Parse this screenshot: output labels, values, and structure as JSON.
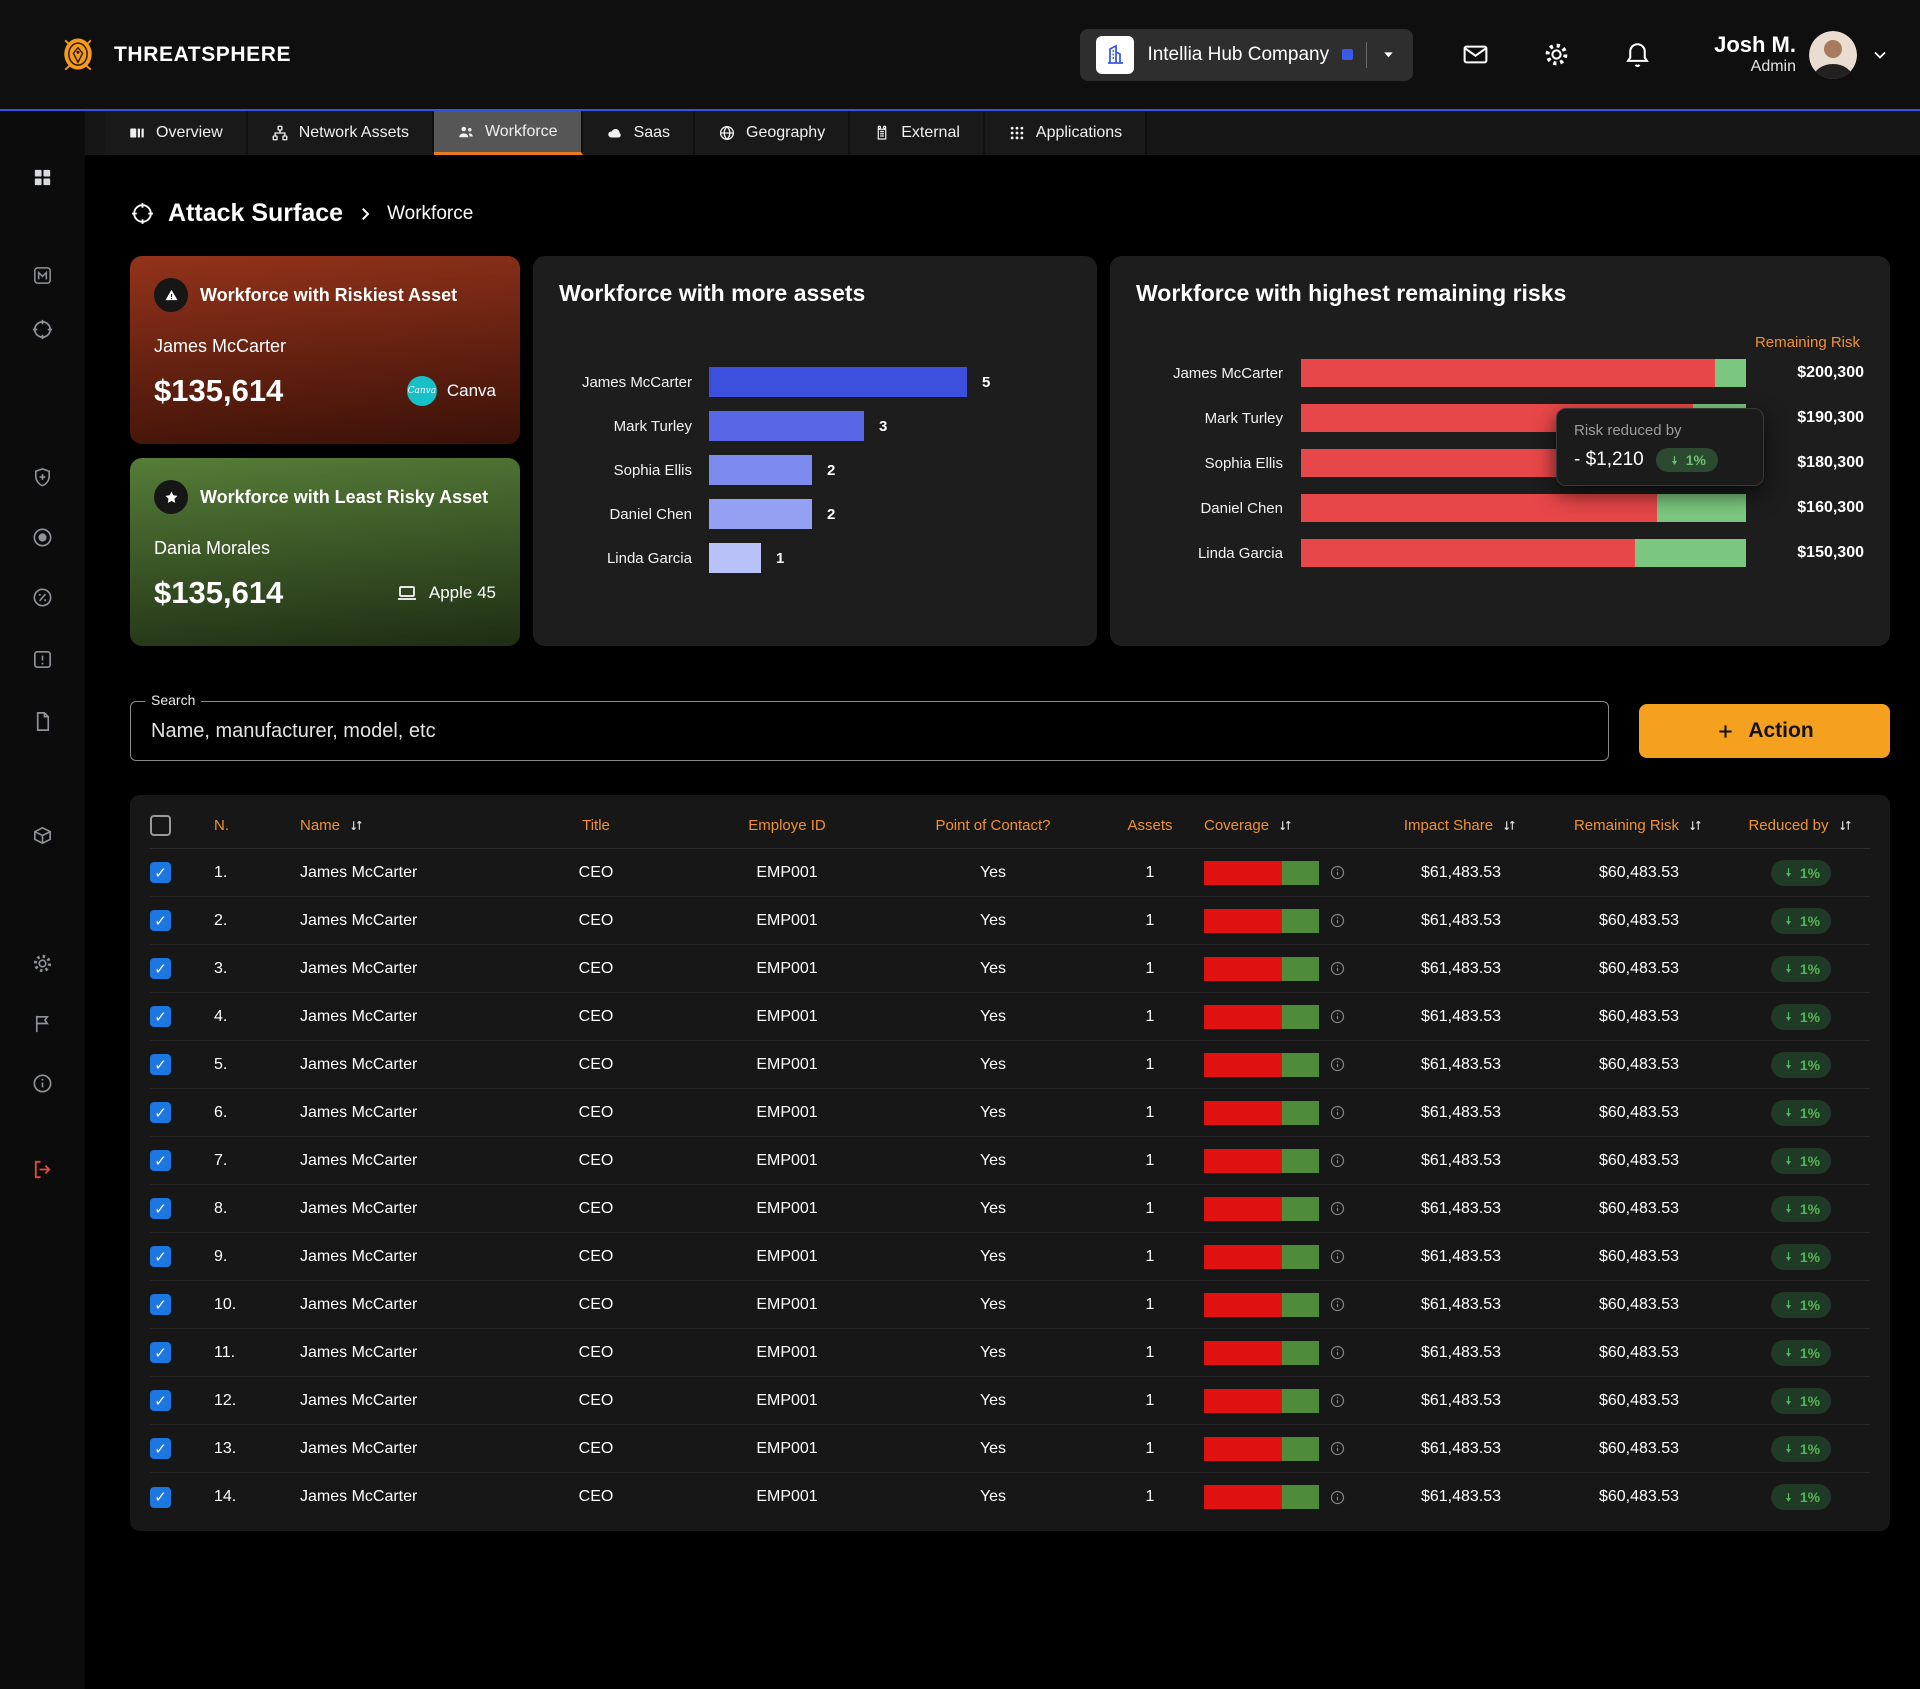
{
  "brand": "THREATSPHERE",
  "topbar": {
    "company": "Intellia Hub Company",
    "icons": [
      "mail",
      "settings",
      "bell"
    ],
    "user_name": "Josh M.",
    "user_role": "Admin"
  },
  "tabs": [
    {
      "label": "Overview",
      "icon": "overview",
      "active": false
    },
    {
      "label": "Network Assets",
      "icon": "network",
      "active": false
    },
    {
      "label": "Workforce",
      "icon": "workforce",
      "active": true
    },
    {
      "label": "Saas",
      "icon": "cloud",
      "active": false
    },
    {
      "label": "Geography",
      "icon": "globe",
      "active": false
    },
    {
      "label": "External",
      "icon": "external",
      "active": false
    },
    {
      "label": "Applications",
      "icon": "apps",
      "active": false
    }
  ],
  "sidebar": {
    "icons": [
      "dashboard",
      "m-logo",
      "target",
      "shield-add",
      "record",
      "percent-circle",
      "alert-square",
      "document",
      "package",
      "settings",
      "flag",
      "info",
      "logout"
    ]
  },
  "breadcrumb": {
    "section": "Attack Surface",
    "current": "Workforce"
  },
  "cards": {
    "riskiest": {
      "title": "Workforce with Riskiest Asset",
      "person": "James McCarter",
      "amount": "$135,614",
      "asset": "Canva",
      "badge_icon": "warning",
      "asset_icon": "canva-logo"
    },
    "least": {
      "title": "Workforce with Least Risky Asset",
      "person": "Dania Morales",
      "amount": "$135,614",
      "asset": "Apple 45",
      "badge_icon": "star",
      "asset_icon": "laptop"
    }
  },
  "chart_data": [
    {
      "type": "bar",
      "orientation": "horizontal",
      "title": "Workforce with more assets",
      "categories": [
        "James McCarter",
        "Mark Turley",
        "Sophia Ellis",
        "Daniel Chen",
        "Linda Garcia"
      ],
      "values": [
        5,
        3,
        2,
        2,
        1
      ],
      "xlim": [
        0,
        5
      ],
      "bar_colors": [
        "#3c50dd",
        "#5767e6",
        "#7d8bee",
        "#94a0f2",
        "#b9c2f8"
      ],
      "grid": false,
      "value_labels": true
    },
    {
      "type": "stacked-bar",
      "orientation": "horizontal",
      "title": "Workforce with highest remaining risks",
      "column_header": "Remaining Risk",
      "categories": [
        "James McCarter",
        "Mark Turley",
        "Sophia Ellis",
        "Daniel Chen",
        "Linda Garcia"
      ],
      "series": [
        {
          "name": "remaining",
          "color": "#e84749",
          "fractions_pct": [
            93,
            88,
            86,
            80,
            75
          ]
        },
        {
          "name": "reduced",
          "color": "#7cc77f",
          "fractions_pct": [
            7,
            12,
            14,
            20,
            25
          ]
        }
      ],
      "values": [
        "$200,300",
        "$190,300",
        "$180,300",
        "$160,300",
        "$150,300"
      ],
      "tooltip": {
        "label": "Risk reduced by",
        "value": "- $1,210",
        "percent": "1%"
      }
    }
  ],
  "search": {
    "label": "Search",
    "placeholder": "Name, manufacturer, model, etc"
  },
  "action": {
    "label": "Action"
  },
  "colors": {
    "accent_orange": "#f5a01f",
    "tab_underline": "#e87b1e",
    "header_orange": "#ef9235",
    "blue_line": "#2f55e6",
    "risk_red": "#e84749",
    "risk_green": "#7cc77f",
    "coverage_red": "#e01111",
    "coverage_green": "#4e8b3b",
    "checkbox_blue": "#1c78e0",
    "logout_red": "#e5483f",
    "canva_teal": "#17bfc7"
  },
  "table": {
    "headers": [
      {
        "label": "N.",
        "sortable": false
      },
      {
        "label": "Name",
        "sortable": true
      },
      {
        "label": "Title",
        "sortable": false
      },
      {
        "label": "Employe ID",
        "sortable": false
      },
      {
        "label": "Point of Contact?",
        "sortable": false
      },
      {
        "label": "Assets",
        "sortable": false
      },
      {
        "label": "Coverage",
        "sortable": true
      },
      {
        "label": "Impact Share",
        "sortable": true
      },
      {
        "label": "Remaining Risk",
        "sortable": true
      },
      {
        "label": "Reduced by",
        "sortable": true
      }
    ],
    "rows": [
      {
        "n": "1.",
        "checked": true,
        "name": "James McCarter",
        "title": "CEO",
        "employee_id": "EMP001",
        "poc": "Yes",
        "assets": "1",
        "impact_share": "$61,483.53",
        "remaining_risk": "$60,483.53",
        "reduced_by": "1%"
      },
      {
        "n": "2.",
        "checked": true,
        "name": "James McCarter",
        "title": "CEO",
        "employee_id": "EMP001",
        "poc": "Yes",
        "assets": "1",
        "impact_share": "$61,483.53",
        "remaining_risk": "$60,483.53",
        "reduced_by": "1%"
      },
      {
        "n": "3.",
        "checked": true,
        "name": "James McCarter",
        "title": "CEO",
        "employee_id": "EMP001",
        "poc": "Yes",
        "assets": "1",
        "impact_share": "$61,483.53",
        "remaining_risk": "$60,483.53",
        "reduced_by": "1%"
      },
      {
        "n": "4.",
        "checked": true,
        "name": "James McCarter",
        "title": "CEO",
        "employee_id": "EMP001",
        "poc": "Yes",
        "assets": "1",
        "impact_share": "$61,483.53",
        "remaining_risk": "$60,483.53",
        "reduced_by": "1%"
      },
      {
        "n": "5.",
        "checked": true,
        "name": "James McCarter",
        "title": "CEO",
        "employee_id": "EMP001",
        "poc": "Yes",
        "assets": "1",
        "impact_share": "$61,483.53",
        "remaining_risk": "$60,483.53",
        "reduced_by": "1%"
      },
      {
        "n": "6.",
        "checked": true,
        "name": "James McCarter",
        "title": "CEO",
        "employee_id": "EMP001",
        "poc": "Yes",
        "assets": "1",
        "impact_share": "$61,483.53",
        "remaining_risk": "$60,483.53",
        "reduced_by": "1%"
      },
      {
        "n": "7.",
        "checked": true,
        "name": "James McCarter",
        "title": "CEO",
        "employee_id": "EMP001",
        "poc": "Yes",
        "assets": "1",
        "impact_share": "$61,483.53",
        "remaining_risk": "$60,483.53",
        "reduced_by": "1%"
      },
      {
        "n": "8.",
        "checked": true,
        "name": "James McCarter",
        "title": "CEO",
        "employee_id": "EMP001",
        "poc": "Yes",
        "assets": "1",
        "impact_share": "$61,483.53",
        "remaining_risk": "$60,483.53",
        "reduced_by": "1%"
      },
      {
        "n": "9.",
        "checked": true,
        "name": "James McCarter",
        "title": "CEO",
        "employee_id": "EMP001",
        "poc": "Yes",
        "assets": "1",
        "impact_share": "$61,483.53",
        "remaining_risk": "$60,483.53",
        "reduced_by": "1%"
      },
      {
        "n": "10.",
        "checked": true,
        "name": "James McCarter",
        "title": "CEO",
        "employee_id": "EMP001",
        "poc": "Yes",
        "assets": "1",
        "impact_share": "$61,483.53",
        "remaining_risk": "$60,483.53",
        "reduced_by": "1%"
      },
      {
        "n": "11.",
        "checked": true,
        "name": "James McCarter",
        "title": "CEO",
        "employee_id": "EMP001",
        "poc": "Yes",
        "assets": "1",
        "impact_share": "$61,483.53",
        "remaining_risk": "$60,483.53",
        "reduced_by": "1%"
      },
      {
        "n": "12.",
        "checked": true,
        "name": "James McCarter",
        "title": "CEO",
        "employee_id": "EMP001",
        "poc": "Yes",
        "assets": "1",
        "impact_share": "$61,483.53",
        "remaining_risk": "$60,483.53",
        "reduced_by": "1%"
      },
      {
        "n": "13.",
        "checked": true,
        "name": "James McCarter",
        "title": "CEO",
        "employee_id": "EMP001",
        "poc": "Yes",
        "assets": "1",
        "impact_share": "$61,483.53",
        "remaining_risk": "$60,483.53",
        "reduced_by": "1%"
      },
      {
        "n": "14.",
        "checked": true,
        "name": "James McCarter",
        "title": "CEO",
        "employee_id": "EMP001",
        "poc": "Yes",
        "assets": "1",
        "impact_share": "$61,483.53",
        "remaining_risk": "$60,483.53",
        "reduced_by": "1%"
      }
    ]
  }
}
